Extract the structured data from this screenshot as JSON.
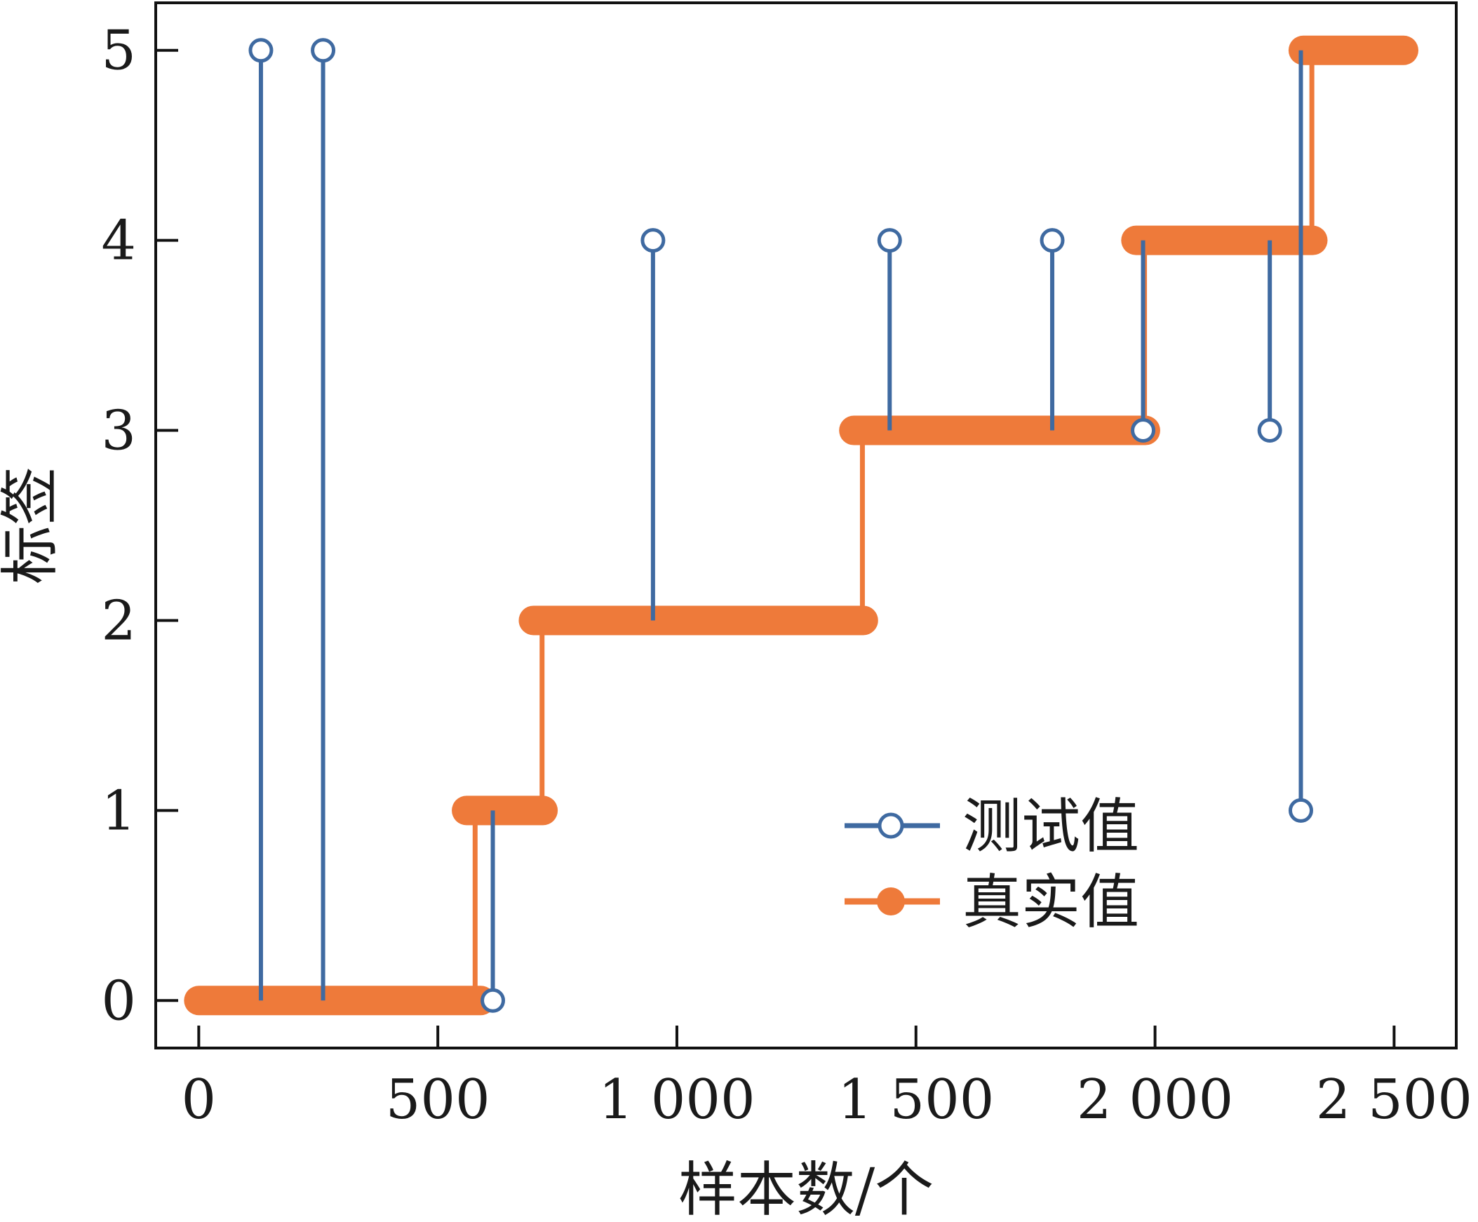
{
  "chart_data": {
    "type": "line",
    "title": "",
    "xlabel": "样本数/个",
    "ylabel": "标签",
    "xlim": [
      -90,
      2630
    ],
    "ylim": [
      -0.25,
      5.25
    ],
    "x_ticks": [
      0,
      500,
      1000,
      1500,
      2000,
      2500
    ],
    "x_tick_labels": [
      "0",
      "500",
      "1 000",
      "1 500",
      "2 000",
      "2 500"
    ],
    "y_ticks": [
      0,
      1,
      2,
      3,
      4,
      5
    ],
    "y_tick_labels": [
      "0",
      "1",
      "2",
      "3",
      "4",
      "5"
    ],
    "grid": false,
    "legend_position": "lower-right",
    "colors": {
      "test": "#3f6aa1",
      "true": "#ee7a3a"
    },
    "series": [
      {
        "name": "真实值",
        "segments": [
          {
            "x_start": 0,
            "x_end": 590,
            "y": 0
          },
          {
            "x_start": 560,
            "x_end": 720,
            "y": 1
          },
          {
            "x_start": 700,
            "x_end": 1390,
            "y": 2
          },
          {
            "x_start": 1370,
            "x_end": 1980,
            "y": 3
          },
          {
            "x_start": 1960,
            "x_end": 2330,
            "y": 4
          },
          {
            "x_start": 2310,
            "x_end": 2520,
            "y": 5
          }
        ]
      },
      {
        "name": "测试值",
        "points": [
          {
            "x": 130,
            "y": 5,
            "base": 0
          },
          {
            "x": 260,
            "y": 5,
            "base": 0
          },
          {
            "x": 615,
            "y": 0,
            "base": 1
          },
          {
            "x": 950,
            "y": 4,
            "base": 2
          },
          {
            "x": 1445,
            "y": 4,
            "base": 3
          },
          {
            "x": 1785,
            "y": 4,
            "base": 3
          },
          {
            "x": 1975,
            "y": 3,
            "base": 4
          },
          {
            "x": 2240,
            "y": 3,
            "base": 4
          },
          {
            "x": 2305,
            "y": 1,
            "base": 5
          }
        ]
      }
    ]
  }
}
